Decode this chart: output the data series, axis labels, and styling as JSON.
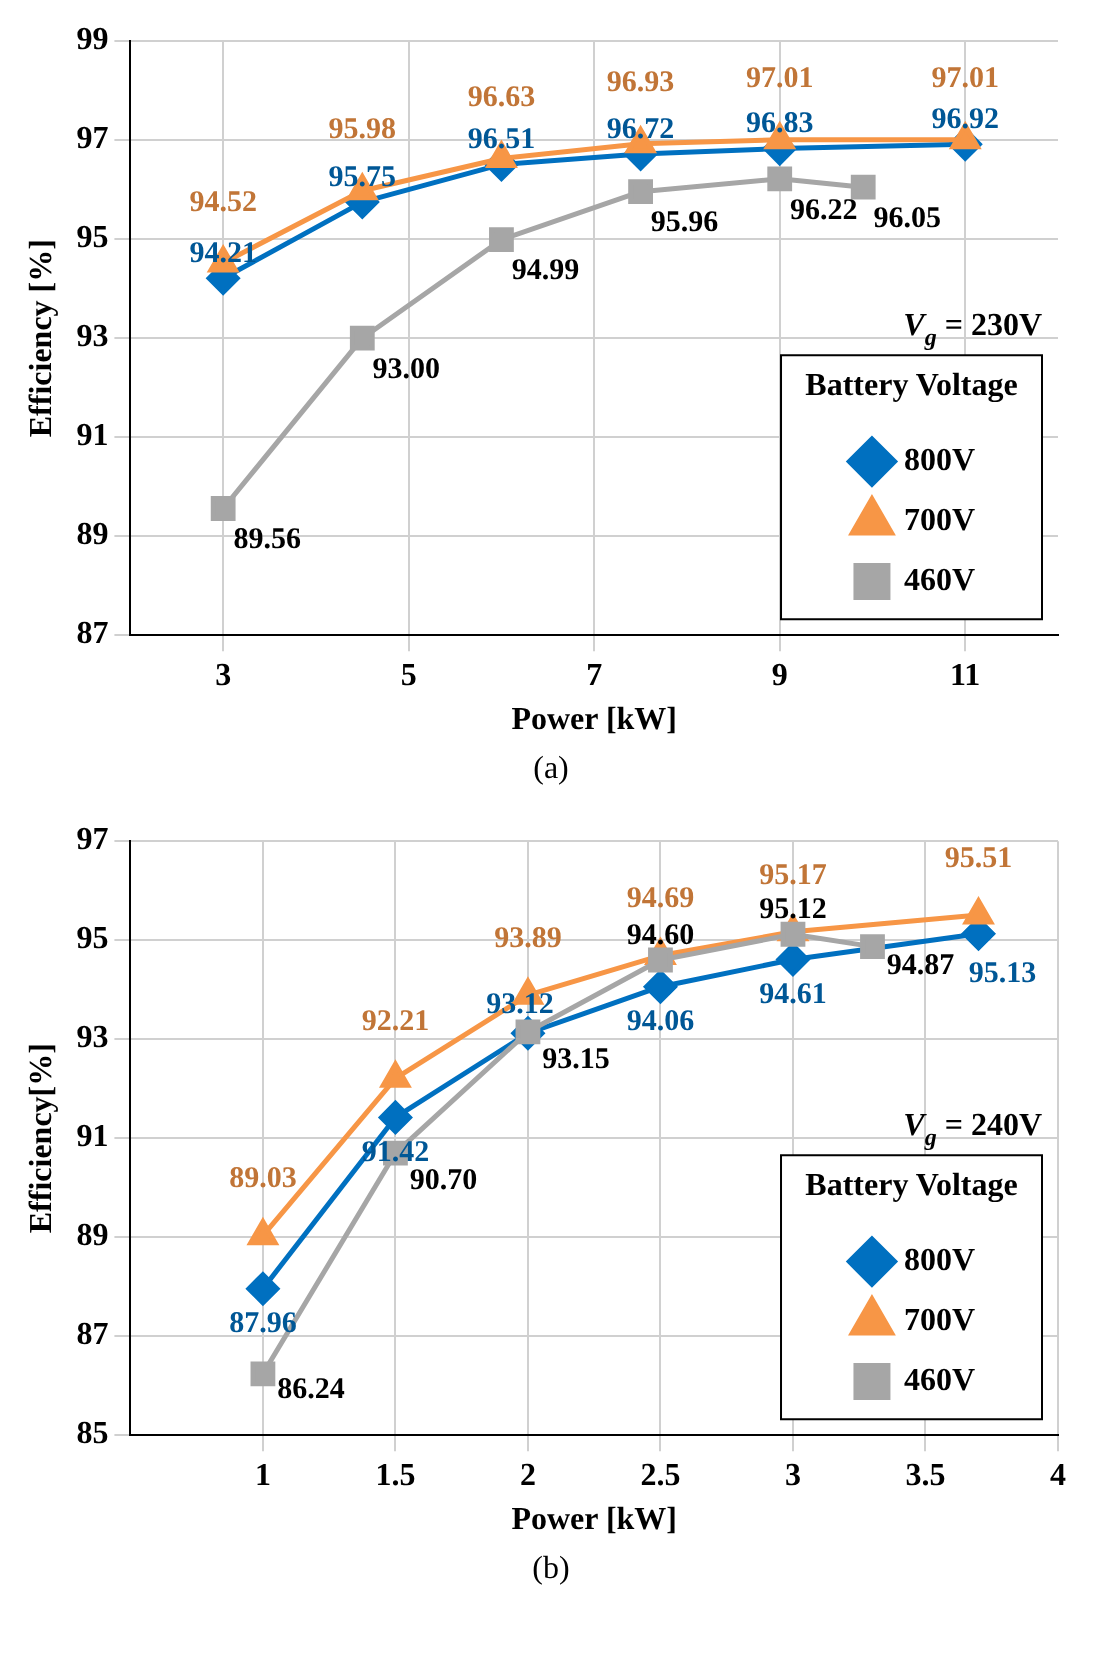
{
  "chart_data": [
    {
      "type": "line",
      "xlabel": "Power [kW]",
      "ylabel": "Efficiency [%]",
      "x": [
        3,
        4.5,
        6,
        7.5,
        9,
        11
      ],
      "xlim": [
        2,
        12
      ],
      "xticks": [
        3,
        5,
        7,
        9,
        11
      ],
      "ylim": [
        87,
        99
      ],
      "yticks": [
        87,
        89,
        91,
        93,
        95,
        97,
        99
      ],
      "grid": true,
      "legend": "bottom right",
      "legend_title": "Battery Voltage",
      "line_style": "solid",
      "annotations": [
        "V$_{g}$ = 230V",
        "(a)"
      ],
      "series": [
        {
          "name": "800V",
          "color": "#0070c0",
          "marker": "diamond",
          "values": [
            94.21,
            95.75,
            96.51,
            96.72,
            96.83,
            96.92
          ],
          "value_labels": [
            "94.21",
            "95.75",
            "96.51",
            "96.72",
            "96.83",
            "96.92"
          ]
        },
        {
          "name": "700V",
          "color": "#f79646",
          "marker": "triangle",
          "values": [
            94.52,
            95.98,
            96.63,
            96.93,
            97.01,
            97.01
          ],
          "value_labels": [
            "94.52",
            "95.98",
            "96.63",
            "96.93",
            "97.01",
            "97.01"
          ]
        },
        {
          "name": "460V",
          "color": "#a6a6a6",
          "marker": "square",
          "x": [
            3,
            4.5,
            6,
            7.5,
            9,
            9.9
          ],
          "values": [
            89.56,
            93.0,
            94.99,
            95.96,
            96.22,
            96.05
          ],
          "value_labels": [
            "89.56",
            "93.00",
            "94.99",
            "95.96",
            "96.22",
            "96.05"
          ]
        }
      ]
    },
    {
      "type": "line",
      "xlabel": "Power [kW]",
      "ylabel": "Efficiency[%]",
      "x": [
        1,
        1.5,
        2,
        2.5,
        3,
        3.7
      ],
      "xlim": [
        0.5,
        4
      ],
      "xticks": [
        1,
        1.5,
        2,
        2.5,
        3,
        3.5,
        4
      ],
      "ylim": [
        85,
        97
      ],
      "yticks": [
        85,
        87,
        89,
        91,
        93,
        95,
        97
      ],
      "grid": true,
      "legend": "bottom right",
      "legend_title": "Battery Voltage",
      "line_style": "solid",
      "annotations": [
        "V$_{g}$ = 240V",
        "(b)"
      ],
      "series": [
        {
          "name": "800V",
          "color": "#0070c0",
          "marker": "diamond",
          "values": [
            87.96,
            91.42,
            93.12,
            94.06,
            94.61,
            95.13
          ],
          "value_labels": [
            "87.96",
            "91.42",
            "93.12",
            "94.06",
            "94.61",
            "95.13"
          ]
        },
        {
          "name": "700V",
          "color": "#f79646",
          "marker": "triangle",
          "values": [
            89.03,
            92.21,
            93.89,
            94.69,
            95.17,
            95.51
          ],
          "value_labels": [
            "89.03",
            "92.21",
            "93.89",
            "94.69",
            "95.17",
            "95.51"
          ]
        },
        {
          "name": "460V",
          "color": "#a6a6a6",
          "marker": "square",
          "x": [
            1,
            1.5,
            2,
            2.5,
            3,
            3.3
          ],
          "values": [
            86.24,
            90.7,
            93.15,
            94.6,
            95.12,
            94.87
          ],
          "value_labels": [
            "86.24",
            "90.70",
            "93.15",
            "94.60",
            "95.12",
            "94.87"
          ]
        }
      ]
    }
  ]
}
